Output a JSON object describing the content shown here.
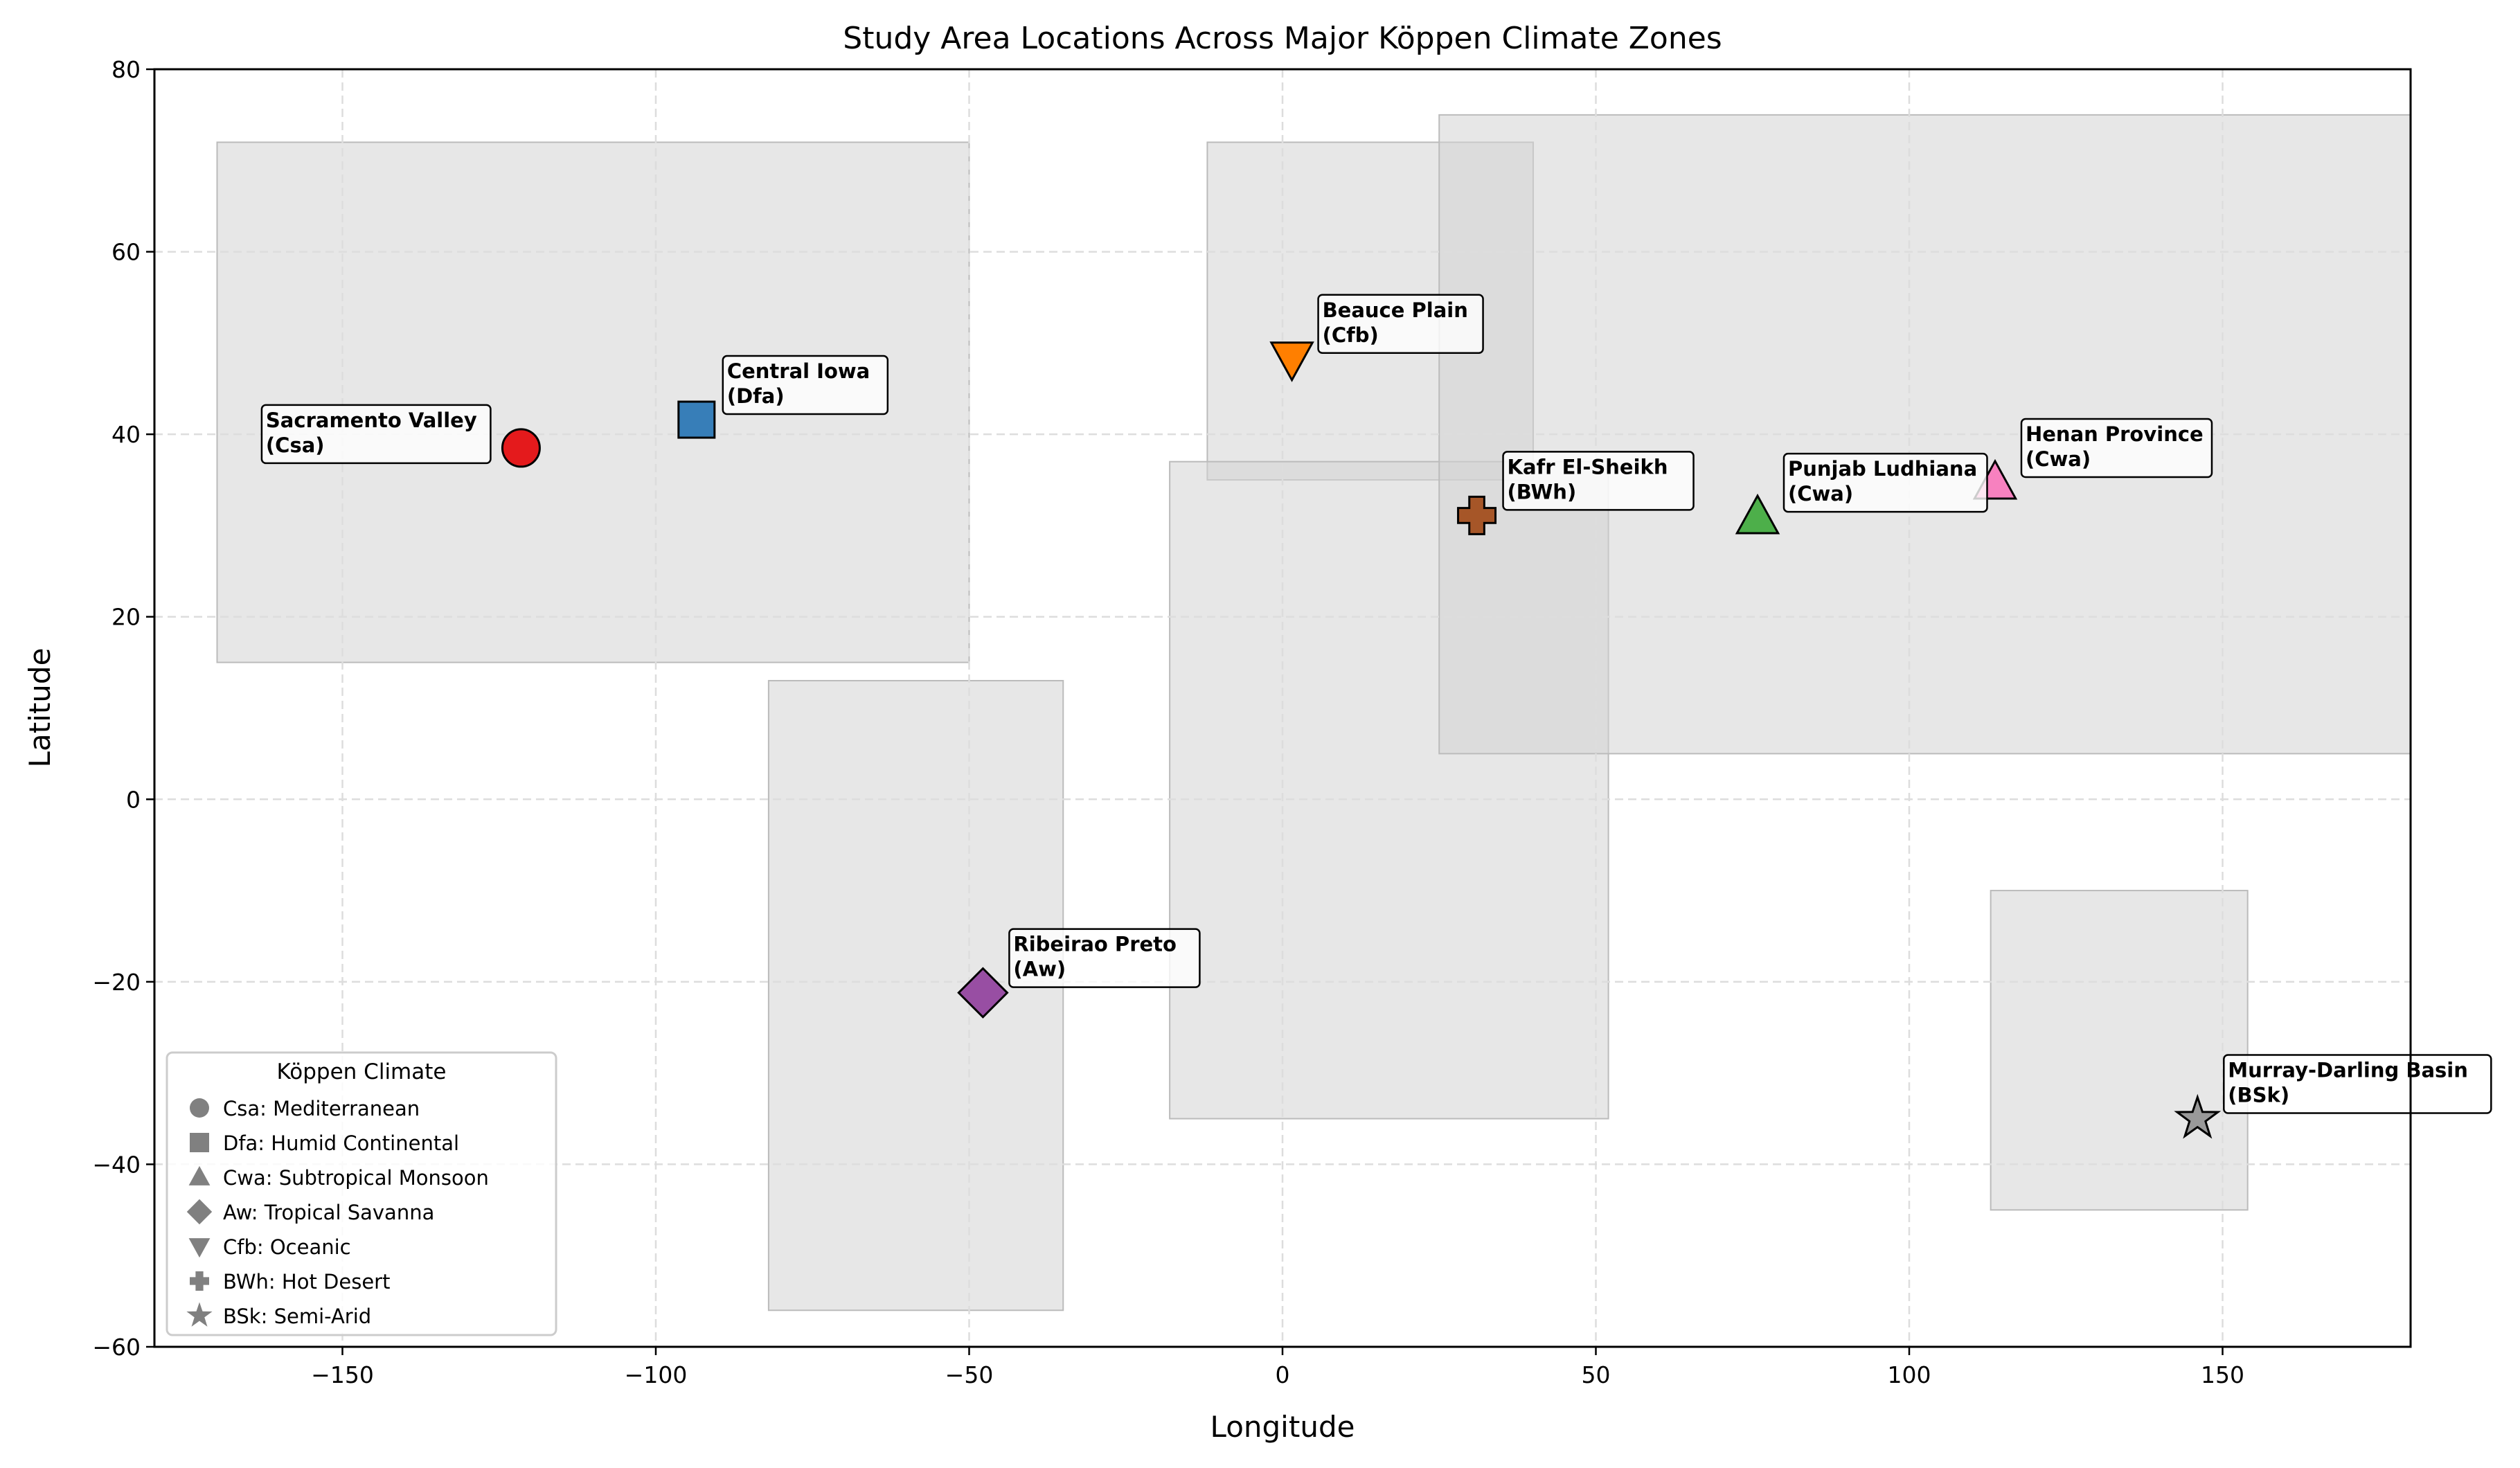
{
  "chart_data": {
    "type": "scatter",
    "title": "Study Area Locations Across Major Köppen Climate Zones",
    "xlabel": "Longitude",
    "ylabel": "Latitude",
    "xlim": [
      -180,
      180
    ],
    "ylim": [
      -60,
      80
    ],
    "xticks": [
      -150,
      -100,
      -50,
      0,
      50,
      100,
      150
    ],
    "yticks": [
      -60,
      -40,
      -20,
      0,
      20,
      40,
      60,
      80
    ],
    "grid": true,
    "legend_position": "lower-left",
    "legend_title": "Köppen Climate",
    "legend": [
      {
        "marker": "circle",
        "label": "Csa: Mediterranean"
      },
      {
        "marker": "square",
        "label": "Dfa: Humid Continental"
      },
      {
        "marker": "triangle-up",
        "label": "Cwa: Subtropical Monsoon"
      },
      {
        "marker": "diamond",
        "label": "Aw: Tropical Savanna"
      },
      {
        "marker": "triangle-down",
        "label": "Cfb: Oceanic"
      },
      {
        "marker": "plus",
        "label": "BWh: Hot Desert"
      },
      {
        "marker": "star",
        "label": "BSk: Semi-Arid"
      }
    ],
    "regions": [
      {
        "x": [
          -170,
          -50
        ],
        "y": [
          15,
          72
        ]
      },
      {
        "x": [
          -82,
          -35
        ],
        "y": [
          -56,
          13
        ]
      },
      {
        "x": [
          -12,
          40
        ],
        "y": [
          35,
          72
        ]
      },
      {
        "x": [
          -18,
          52
        ],
        "y": [
          -35,
          37
        ]
      },
      {
        "x": [
          25,
          180
        ],
        "y": [
          5,
          75
        ]
      },
      {
        "x": [
          113,
          154
        ],
        "y": [
          -45,
          -10
        ]
      }
    ],
    "points": [
      {
        "name": "Sacramento Valley",
        "climate": "Csa",
        "lon": -121.5,
        "lat": 38.5,
        "marker": "circle",
        "color": "#e41a1c"
      },
      {
        "name": "Central Iowa",
        "climate": "Dfa",
        "lon": -93.5,
        "lat": 41.6,
        "marker": "square",
        "color": "#377eb8"
      },
      {
        "name": "Beauce Plain",
        "climate": "Cfb",
        "lon": 1.5,
        "lat": 48.3,
        "marker": "triangle-down",
        "color": "#ff7f00"
      },
      {
        "name": "Kafr El-Sheikh",
        "climate": "BWh",
        "lon": 31.0,
        "lat": 31.1,
        "marker": "plus",
        "color": "#a65628"
      },
      {
        "name": "Punjab Ludhiana",
        "climate": "Cwa",
        "lon": 75.8,
        "lat": 30.9,
        "marker": "triangle-up",
        "color": "#4daf4a"
      },
      {
        "name": "Henan Province",
        "climate": "Cwa",
        "lon": 113.7,
        "lat": 34.7,
        "marker": "triangle-up",
        "color": "#f781bf"
      },
      {
        "name": "Ribeirao Preto",
        "climate": "Aw",
        "lon": -47.8,
        "lat": -21.2,
        "marker": "diamond",
        "color": "#984ea3"
      },
      {
        "name": "Murray-Darling Basin",
        "climate": "BSk",
        "lon": 146.0,
        "lat": -35.0,
        "marker": "star",
        "color": "#999999"
      }
    ]
  }
}
